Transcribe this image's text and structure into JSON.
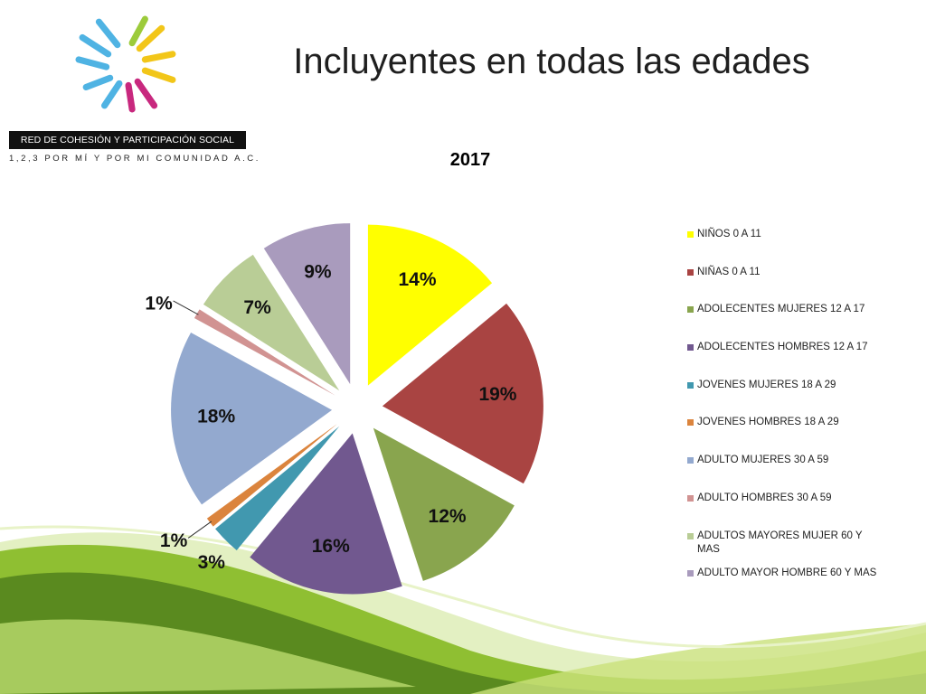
{
  "header": {
    "title": "Incluyentes en todas las edades",
    "org_name": "RED DE COHESIÓN Y PARTICIPACIÓN SOCIAL",
    "org_subtitle": "1,2,3 POR MÍ Y POR MI COMUNIDAD A.C."
  },
  "logo": {
    "icon": "hands-circle-logo",
    "colors": [
      "#4fb3e3",
      "#9ccb3b",
      "#f2c619",
      "#c8287e"
    ]
  },
  "chart_data": {
    "type": "pie",
    "title": "2017",
    "legend_position": "right",
    "exploded": true,
    "series": [
      {
        "name": "NIÑOS 0 A 11",
        "value": 14,
        "label": "14%",
        "color": "#ffff00"
      },
      {
        "name": "NIÑAS 0 A 11",
        "value": 19,
        "label": "19%",
        "color": "#a94442"
      },
      {
        "name": "ADOLECENTES MUJERES 12 A 17",
        "value": 12,
        "label": "12%",
        "color": "#89a54e"
      },
      {
        "name": "ADOLECENTES HOMBRES 12 A 17",
        "value": 16,
        "label": "16%",
        "color": "#71588f"
      },
      {
        "name": "JOVENES MUJERES 18 A 29",
        "value": 3,
        "label": "3%",
        "color": "#4198af"
      },
      {
        "name": "JOVENES HOMBRES 18 A 29",
        "value": 1,
        "label": "1%",
        "color": "#db843d"
      },
      {
        "name": "ADULTO MUJERES 30 A 59",
        "value": 18,
        "label": "18%",
        "color": "#93a9cf"
      },
      {
        "name": "ADULTO HOMBRES 30 A 59",
        "value": 1,
        "label": "1%",
        "color": "#d19392"
      },
      {
        "name": "ADULTOS MAYORES MUJER 60 Y MAS",
        "value": 7,
        "label": "7%",
        "color": "#b9cd96"
      },
      {
        "name": "ADULTO MAYOR HOMBRE 60 Y MAS",
        "value": 9,
        "label": "9%",
        "color": "#a99bbd"
      }
    ]
  }
}
